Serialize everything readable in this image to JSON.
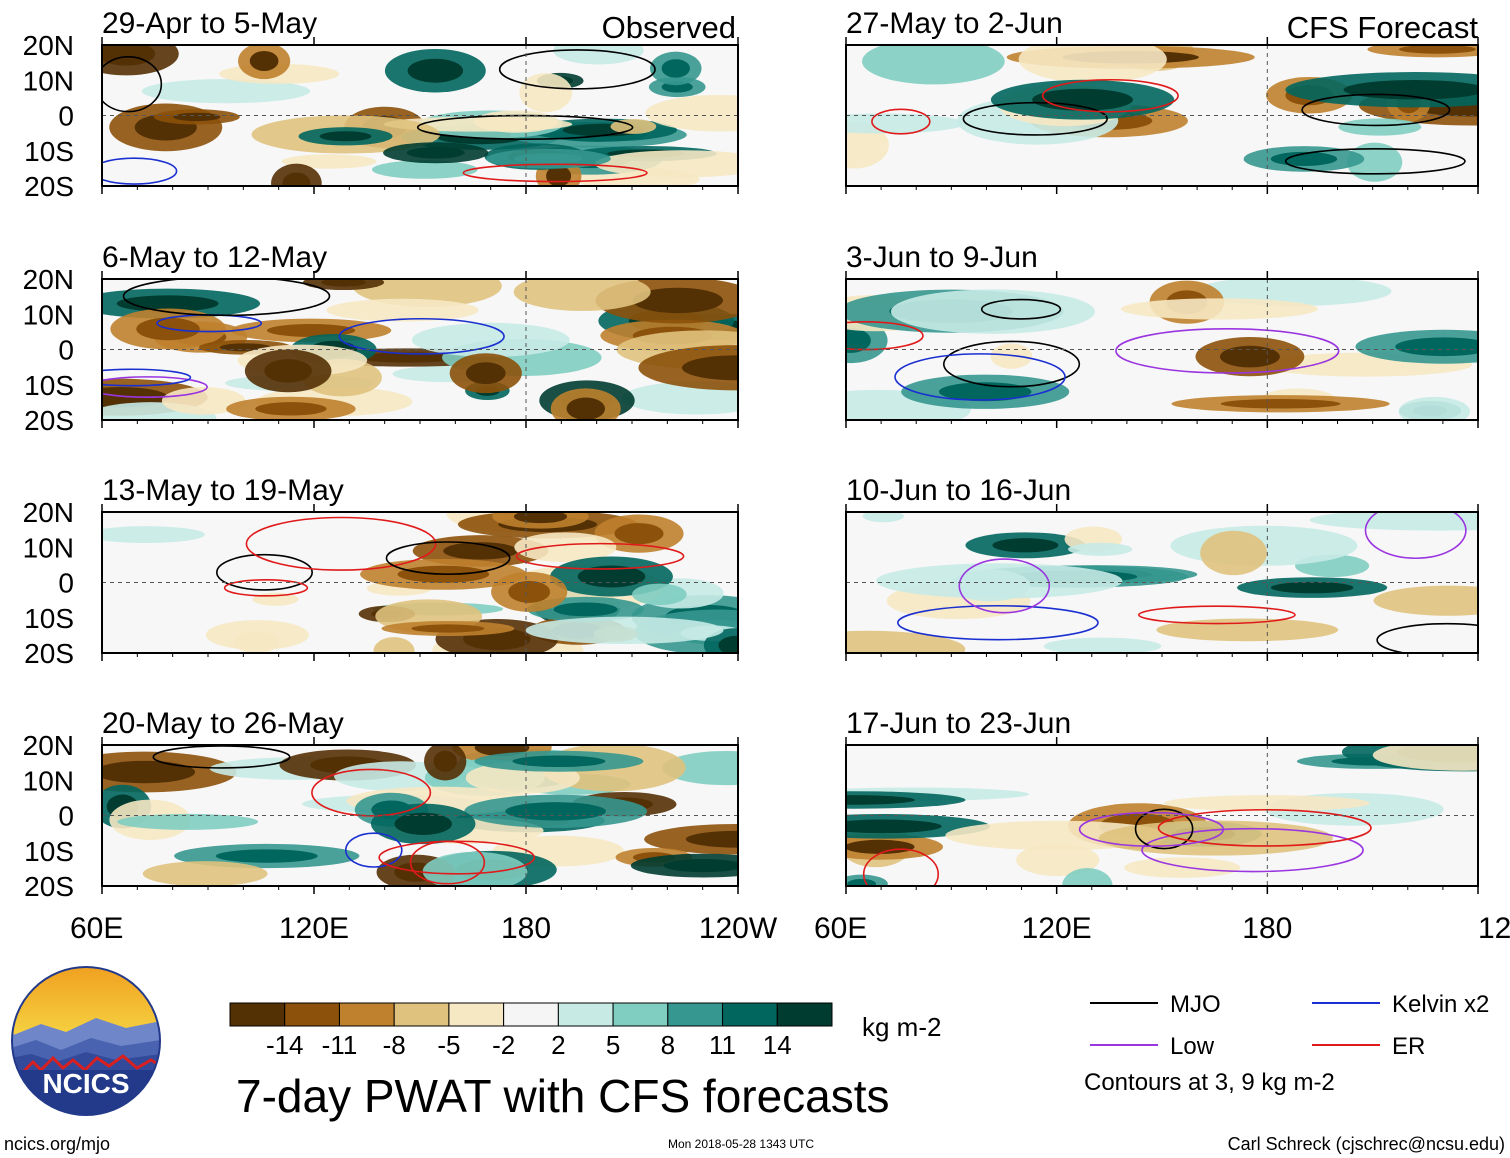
{
  "chart_data": {
    "type": "heatmap",
    "title": "7-day PWAT with CFS forecasts",
    "units": "kg m-2",
    "lat_ticks": [
      "20N",
      "10N",
      "0",
      "10S",
      "20S"
    ],
    "lat_values": [
      20,
      10,
      0,
      -10,
      -20
    ],
    "lon_ticks": [
      "60E",
      "120E",
      "180",
      "120W"
    ],
    "lon_values": [
      60,
      120,
      180,
      240
    ],
    "xlim": [
      60,
      240
    ],
    "ylim": [
      -20,
      20
    ],
    "column_headers": {
      "observed": "Observed",
      "forecast": "CFS Forecast"
    },
    "observed_panels": [
      {
        "label": "29-Apr to 5-May",
        "seed": 11
      },
      {
        "label": "6-May to 12-May",
        "seed": 23
      },
      {
        "label": "13-May to 19-May",
        "seed": 37
      },
      {
        "label": "20-May to 26-May",
        "seed": 41
      }
    ],
    "forecast_panels": [
      {
        "label": "27-May to 2-Jun",
        "seed": 53
      },
      {
        "label": "3-Jun to 9-Jun",
        "seed": 67
      },
      {
        "label": "10-Jun to 16-Jun",
        "seed": 71
      },
      {
        "label": "17-Jun to 23-Jun",
        "seed": 89
      }
    ],
    "colorbar": {
      "colors": [
        "#543005",
        "#8c510a",
        "#bf812d",
        "#dfc27d",
        "#f6e8c3",
        "#f5f5f5",
        "#c7eae5",
        "#80cdc1",
        "#35978f",
        "#01665e",
        "#003c30"
      ],
      "tick_labels": [
        "-14",
        "-11",
        "-8",
        "-5",
        "-2",
        "2",
        "5",
        "8",
        "11",
        "14"
      ],
      "tick_values": [
        -14,
        -11,
        -8,
        -5,
        -2,
        2,
        5,
        8,
        11,
        14
      ]
    },
    "legend": [
      {
        "label": "MJO",
        "color": "#000000"
      },
      {
        "label": "Kelvin x2",
        "color": "#1a2fd0"
      },
      {
        "label": "Low",
        "color": "#9a35e0"
      },
      {
        "label": "ER",
        "color": "#e01a1a"
      }
    ],
    "contours_note": "Contours at 3, 9 kg m-2"
  },
  "footer": {
    "logo_text": "NCICS",
    "url": "ncics.org/mjo",
    "timestamp": "Mon 2018-05-28 1343 UTC",
    "credit": "Carl Schreck (cjschrec@ncsu.edu)"
  }
}
